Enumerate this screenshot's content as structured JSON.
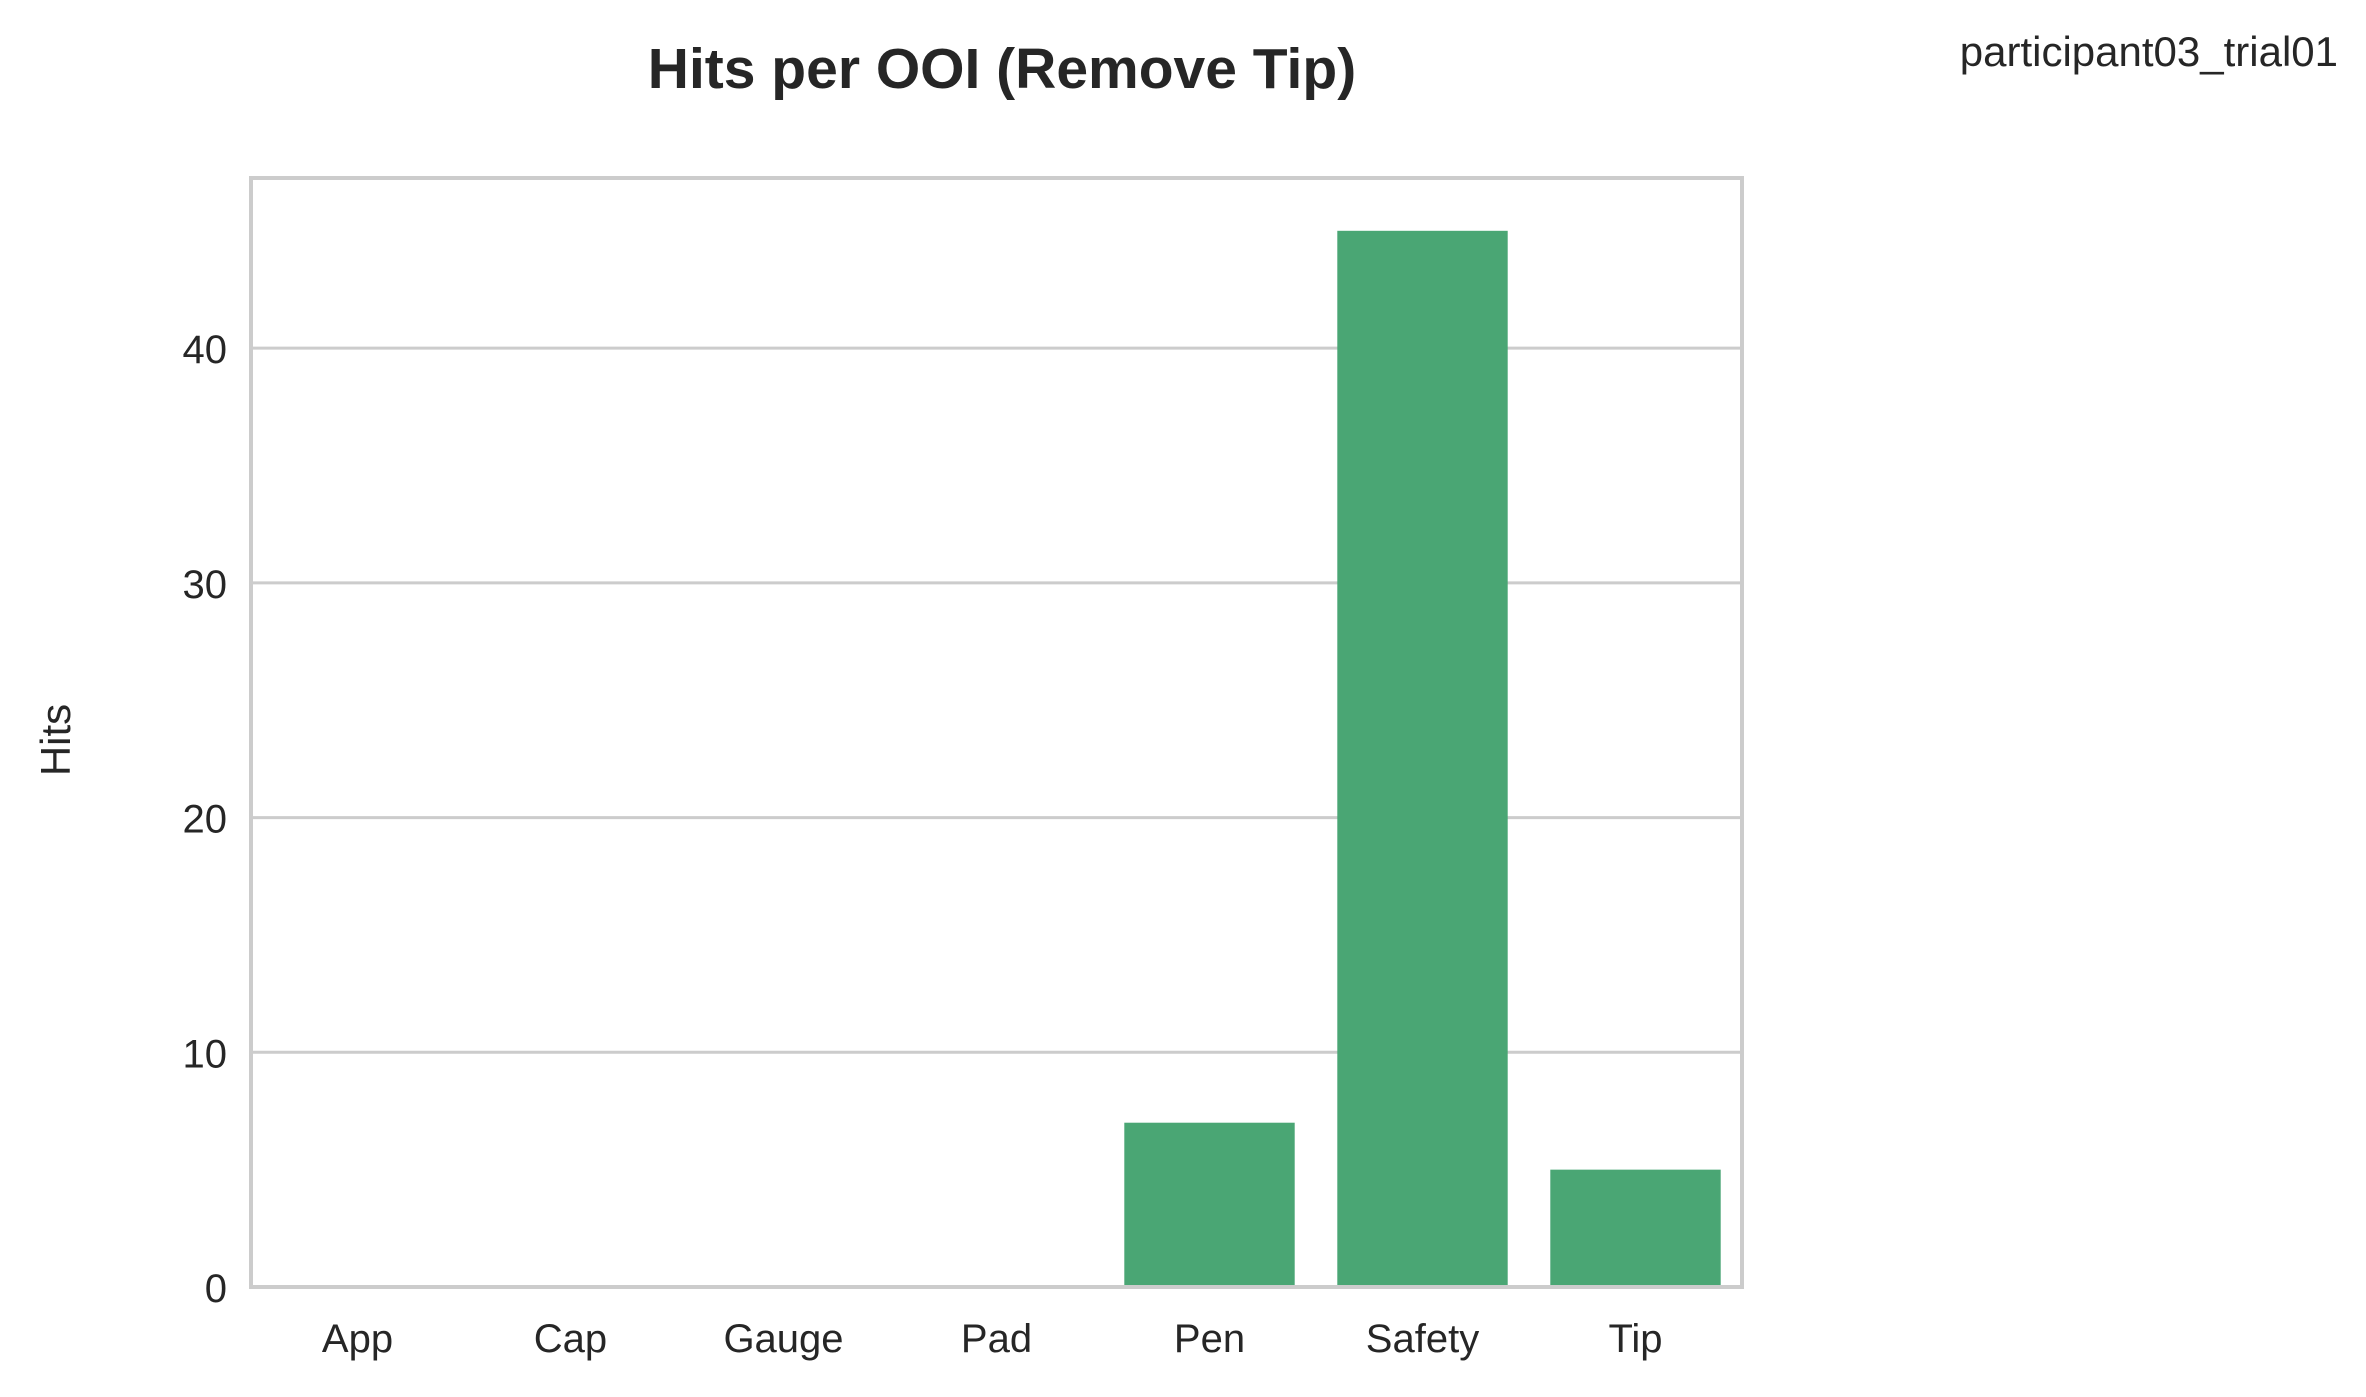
{
  "corner_text": "participant03_trial01",
  "chart_data": {
    "type": "bar",
    "title": "Hits per OOI (Remove Tip)",
    "xlabel": "",
    "ylabel": "Hits",
    "categories": [
      "App",
      "Cap",
      "Gauge",
      "Pad",
      "Pen",
      "Safety",
      "Tip"
    ],
    "values": [
      0,
      0,
      0,
      0,
      7,
      45,
      5
    ],
    "ylim": [
      0,
      47.25
    ],
    "yticks": [
      0,
      10,
      20,
      30,
      40
    ],
    "grid": "horizontal",
    "legend": "none",
    "colors": {
      "bar": "#4aa674",
      "grid": "#cccccc",
      "frame": "#cccccc",
      "text": "#262626"
    }
  }
}
